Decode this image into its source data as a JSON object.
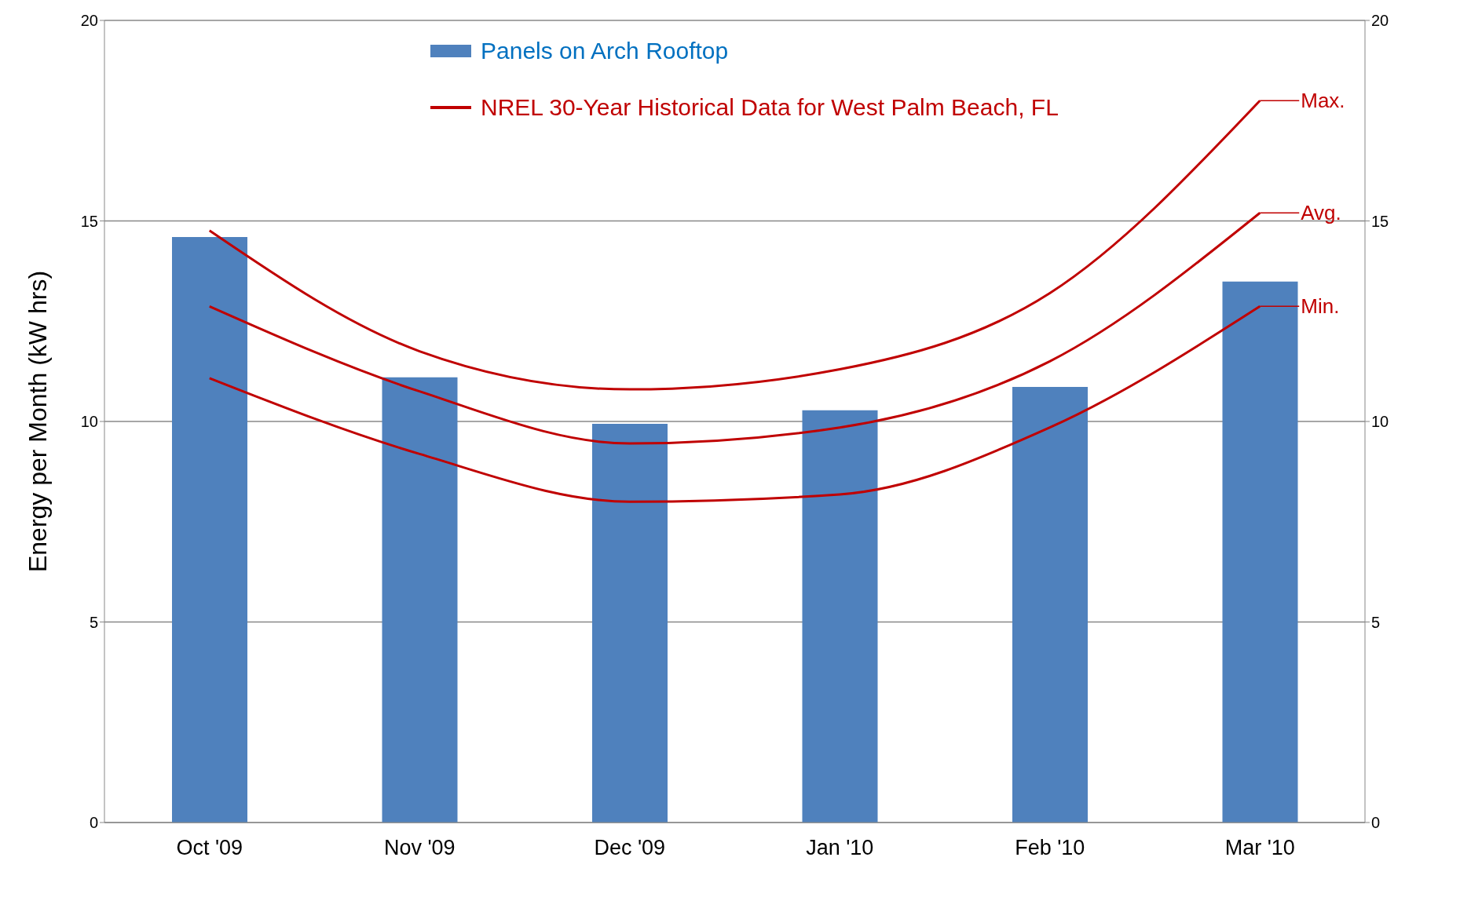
{
  "chart_data": {
    "type": "bar",
    "categories": [
      "Oct  '09",
      "Nov  '09",
      "Dec  '09",
      "Jan  '10",
      "Feb  '10",
      "Mar  '10"
    ],
    "ylabel": "Energy per Month  (kW hrs)",
    "series": [
      {
        "name": "Panels on Arch Rooftop",
        "type": "bar",
        "color": "#4f81bd",
        "values": [
          14.6,
          11.1,
          9.94,
          10.28,
          10.86,
          13.49
        ]
      },
      {
        "name": "Max.",
        "type": "line",
        "axis": "y2",
        "color": "#c00000",
        "values": [
          14.76,
          11.75,
          10.8,
          11.3,
          13.2,
          18.0
        ]
      },
      {
        "name": "Avg.",
        "type": "line",
        "axis": "y2",
        "color": "#c00000",
        "values": [
          12.87,
          10.75,
          9.45,
          9.85,
          11.5,
          15.2
        ]
      },
      {
        "name": "Min.",
        "type": "line",
        "axis": "y2",
        "color": "#c00000",
        "values": [
          11.08,
          9.19,
          8.0,
          8.18,
          9.85,
          12.87
        ]
      }
    ],
    "annotations": [
      "NREL 30-Year Historical Data for West Palm Beach, FL"
    ],
    "ylim": [
      0,
      20
    ],
    "yticks": [
      0,
      5,
      10,
      15,
      20
    ],
    "y2lim": [
      0,
      20
    ],
    "y2ticks": [
      0,
      5,
      10,
      15,
      20
    ],
    "grid": "y",
    "legend": "top",
    "marker": "none",
    "line_style": "solid"
  }
}
